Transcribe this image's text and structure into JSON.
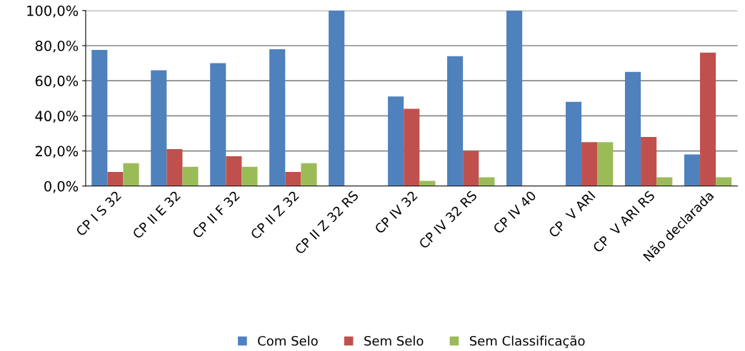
{
  "chart_data": {
    "type": "bar",
    "categories": [
      "CP I S 32",
      "CP II E 32",
      "CP II F 32",
      "CP II Z 32",
      "CP II Z 32 RS",
      "CP IV 32",
      "CP IV 32 RS",
      "CP IV 40",
      "CP  V ARI",
      "CP  V ARI RS",
      "Não declarada"
    ],
    "series": [
      {
        "name": "Com Selo",
        "color": "#4f81bd",
        "values": [
          77.5,
          66,
          70,
          78,
          100,
          51,
          74,
          100,
          48,
          65,
          18
        ]
      },
      {
        "name": "Sem Selo",
        "color": "#c0504d",
        "values": [
          8,
          21,
          17,
          8,
          0,
          44,
          20,
          0,
          25,
          28,
          76
        ]
      },
      {
        "name": "Sem Classificação",
        "color": "#9bbb59",
        "values": [
          13,
          11,
          11,
          13,
          0,
          3,
          5,
          0,
          25,
          5,
          5
        ]
      }
    ],
    "ylim": [
      0,
      100
    ],
    "yticks": [
      {
        "value": 0,
        "label": "0,0%"
      },
      {
        "value": 20,
        "label": "20,0%"
      },
      {
        "value": 40,
        "label": "40,0%"
      },
      {
        "value": 60,
        "label": "60,0%"
      },
      {
        "value": 80,
        "label": "80,0%"
      },
      {
        "value": 100,
        "label": "100,0%"
      }
    ],
    "grid": "y",
    "legend": "bottom"
  }
}
